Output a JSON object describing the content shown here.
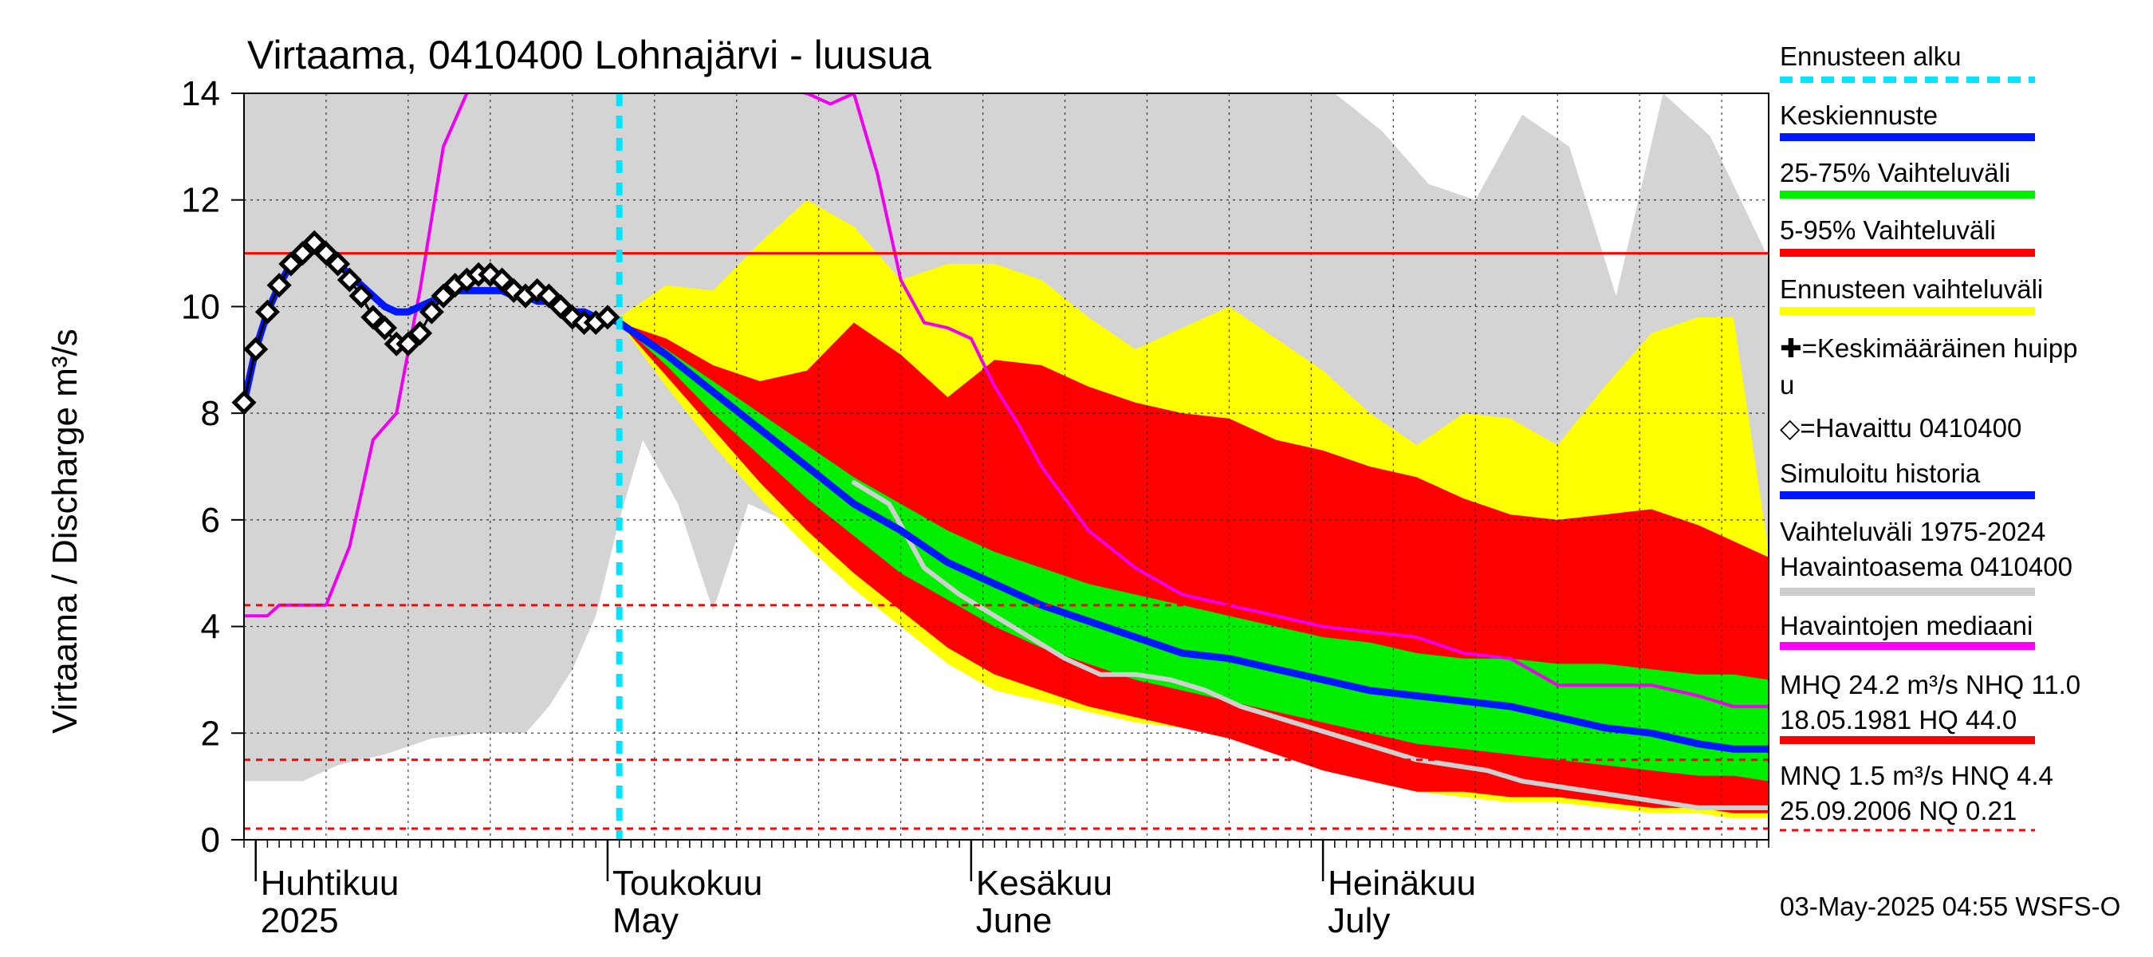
{
  "title": "Virtaama, 0410400 Lohnajärvi - luusua",
  "ylabel": "Virtaama / Discharge   m³/s",
  "footer": "03-May-2025 04:55 WSFS-O",
  "months": [
    {
      "fi": "Huhtikuu",
      "en": "2025",
      "date": "2025-04-01"
    },
    {
      "fi": "Toukokuu",
      "en": "May",
      "date": "2025-05-01"
    },
    {
      "fi": "Kesäkuu",
      "en": "June",
      "date": "2025-06-01"
    },
    {
      "fi": "Heinäkuu",
      "en": "July",
      "date": "2025-07-01"
    }
  ],
  "legend": [
    {
      "label": "Ennusteen alku",
      "color": "#00e5ff",
      "style": "dashed"
    },
    {
      "label": "Keskiennuste",
      "color": "#0018ff",
      "style": "line"
    },
    {
      "label": "25-75% Vaihteluväli",
      "color": "#00ee00",
      "style": "line"
    },
    {
      "label": "5-95% Vaihteluväli",
      "color": "#ff0000",
      "style": "line"
    },
    {
      "label": "Ennusteen vaihteluväli",
      "color": "#ffff00",
      "style": "line"
    },
    {
      "label": "✚=Keskimääräinen huipp",
      "label2": "u",
      "color": "#000000",
      "style": "none"
    },
    {
      "label": "◇=Havaittu 0410400",
      "color": "#000000",
      "style": "none"
    },
    {
      "label": "Simuloitu historia",
      "color": "#0018ff",
      "style": "line"
    },
    {
      "label": "Vaihteluväli 1975-2024",
      "label2": " Havaintoasema 0410400",
      "color": "#cccccc",
      "style": "line"
    },
    {
      "label": "Havaintojen mediaani",
      "color": "#ff00ff",
      "style": "line"
    },
    {
      "label": "MHQ 24.2 m³/s NHQ 11.0",
      "label2": "18.05.1981 HQ 44.0",
      "color": "#ff0000",
      "style": "line"
    },
    {
      "label": "MNQ  1.5 m³/s HNQ  4.4",
      "label2": "25.09.2006 NQ 0.21",
      "color": "#ff0000",
      "style": "dashed"
    }
  ],
  "chart_data": {
    "type": "line",
    "title": "Virtaama, 0410400 Lohnajärvi - luusua",
    "ylabel": "Virtaama / Discharge   m³/s",
    "xlim": [
      "2025-03-31",
      "2025-08-08"
    ],
    "ylim": [
      0,
      14
    ],
    "yticks": [
      0,
      2,
      4,
      6,
      8,
      10,
      12,
      14
    ],
    "grid": true,
    "forecast_start": "2025-05-02",
    "reference_lines": {
      "NHQ": 11.0,
      "HNQ": 4.4,
      "MNQ": 1.5,
      "NQ": 0.21
    },
    "history_range": {
      "name": "Vaihteluväli 1975-2024",
      "x": [
        "2025-03-31",
        "2025-04-03",
        "2025-04-05",
        "2025-04-08",
        "2025-04-12",
        "2025-04-16",
        "2025-04-20",
        "2025-04-24",
        "2025-04-26",
        "2025-04-28",
        "2025-04-30",
        "2025-05-02",
        "2025-05-04",
        "2025-05-07",
        "2025-05-10",
        "2025-05-13",
        "2025-05-16",
        "2025-05-20",
        "2025-05-24",
        "2025-05-28",
        "2025-06-01",
        "2025-06-05",
        "2025-06-08",
        "2025-06-12",
        "2025-06-16",
        "2025-06-20",
        "2025-06-24",
        "2025-06-28",
        "2025-07-02",
        "2025-07-06",
        "2025-07-10",
        "2025-07-14",
        "2025-07-18",
        "2025-07-22",
        "2025-07-26",
        "2025-07-30",
        "2025-08-03",
        "2025-08-08"
      ],
      "low": [
        1.1,
        1.1,
        1.1,
        1.4,
        1.6,
        1.9,
        2.0,
        2.0,
        2.5,
        3.2,
        4.2,
        6.0,
        7.5,
        6.3,
        4.3,
        6.3,
        6.0,
        6.3,
        6.8,
        6.5,
        5.5,
        4.9,
        4.6,
        4.2,
        3.8,
        3.4,
        3.0,
        2.7,
        2.4,
        2.0,
        1.7,
        1.5,
        1.3,
        1.2,
        1.1,
        1.0,
        0.9,
        0.8
      ],
      "high": [
        14,
        14,
        14,
        14,
        14,
        14,
        14,
        14,
        14,
        14,
        14,
        14,
        14,
        14,
        14,
        14,
        14,
        14,
        14,
        14,
        14,
        14,
        14,
        14,
        14,
        14,
        14,
        14,
        14,
        13.3,
        12.3,
        12.0,
        13.6,
        13.0,
        10.2,
        14.0,
        13.2,
        10.9
      ]
    },
    "bands": [
      {
        "name": "Ennusteen vaihteluväli",
        "x": [
          "2025-05-02",
          "2025-05-06",
          "2025-05-10",
          "2025-05-14",
          "2025-05-18",
          "2025-05-22",
          "2025-05-26",
          "2025-05-30",
          "2025-06-03",
          "2025-06-07",
          "2025-06-11",
          "2025-06-15",
          "2025-06-19",
          "2025-06-23",
          "2025-06-27",
          "2025-07-01",
          "2025-07-05",
          "2025-07-09",
          "2025-07-13",
          "2025-07-17",
          "2025-07-21",
          "2025-07-25",
          "2025-07-29",
          "2025-08-02",
          "2025-08-05",
          "2025-08-08"
        ],
        "low": [
          9.7,
          8.5,
          7.4,
          6.4,
          5.5,
          4.7,
          4.0,
          3.3,
          2.8,
          2.6,
          2.4,
          2.2,
          2.1,
          2.0,
          1.7,
          1.4,
          1.1,
          0.9,
          0.8,
          0.7,
          0.7,
          0.6,
          0.5,
          0.5,
          0.4,
          0.4
        ],
        "high": [
          9.8,
          10.4,
          10.3,
          11.2,
          12.0,
          11.5,
          10.5,
          10.8,
          10.8,
          10.5,
          9.8,
          9.2,
          9.6,
          10.0,
          9.4,
          8.8,
          8.0,
          7.4,
          8.0,
          7.9,
          7.4,
          8.5,
          9.5,
          9.8,
          9.8,
          5.4
        ]
      },
      {
        "name": "5-95% Vaihteluväli",
        "x": [
          "2025-05-02",
          "2025-05-06",
          "2025-05-10",
          "2025-05-14",
          "2025-05-18",
          "2025-05-22",
          "2025-05-26",
          "2025-05-30",
          "2025-06-03",
          "2025-06-07",
          "2025-06-11",
          "2025-06-15",
          "2025-06-19",
          "2025-06-23",
          "2025-06-27",
          "2025-07-01",
          "2025-07-05",
          "2025-07-09",
          "2025-07-13",
          "2025-07-17",
          "2025-07-21",
          "2025-07-25",
          "2025-07-29",
          "2025-08-02",
          "2025-08-05",
          "2025-08-08"
        ],
        "low": [
          9.7,
          8.7,
          7.7,
          6.7,
          5.8,
          5.0,
          4.3,
          3.6,
          3.1,
          2.8,
          2.5,
          2.3,
          2.1,
          1.9,
          1.6,
          1.3,
          1.1,
          0.9,
          0.9,
          0.8,
          0.8,
          0.7,
          0.6,
          0.6,
          0.5,
          0.5
        ],
        "high": [
          9.7,
          9.4,
          8.9,
          8.6,
          8.8,
          9.7,
          9.1,
          8.3,
          9.0,
          8.9,
          8.5,
          8.2,
          8.0,
          7.9,
          7.5,
          7.3,
          7.0,
          6.8,
          6.4,
          6.1,
          6.0,
          6.1,
          6.2,
          5.9,
          5.6,
          5.3
        ]
      },
      {
        "name": "25-75% Vaihteluväli",
        "x": [
          "2025-05-02",
          "2025-05-06",
          "2025-05-10",
          "2025-05-14",
          "2025-05-18",
          "2025-05-22",
          "2025-05-26",
          "2025-05-30",
          "2025-06-03",
          "2025-06-07",
          "2025-06-11",
          "2025-06-15",
          "2025-06-19",
          "2025-06-23",
          "2025-06-27",
          "2025-07-01",
          "2025-07-05",
          "2025-07-09",
          "2025-07-13",
          "2025-07-17",
          "2025-07-21",
          "2025-07-25",
          "2025-07-29",
          "2025-08-02",
          "2025-08-05",
          "2025-08-08"
        ],
        "low": [
          9.7,
          8.9,
          8.0,
          7.2,
          6.4,
          5.7,
          5.0,
          4.5,
          4.0,
          3.6,
          3.3,
          3.0,
          2.8,
          2.6,
          2.4,
          2.2,
          2.0,
          1.8,
          1.7,
          1.6,
          1.5,
          1.4,
          1.3,
          1.2,
          1.2,
          1.1
        ],
        "high": [
          9.7,
          9.2,
          8.6,
          8.0,
          7.4,
          6.8,
          6.3,
          5.8,
          5.4,
          5.1,
          4.8,
          4.6,
          4.4,
          4.2,
          4.0,
          3.8,
          3.7,
          3.5,
          3.4,
          3.4,
          3.3,
          3.3,
          3.2,
          3.1,
          3.1,
          3.0
        ]
      }
    ],
    "series": [
      {
        "name": "Keskiennuste",
        "color": "#0018ff",
        "x": [
          "2025-03-31",
          "2025-04-01",
          "2025-04-02",
          "2025-04-03",
          "2025-04-04",
          "2025-04-05",
          "2025-04-06",
          "2025-04-07",
          "2025-04-08",
          "2025-04-09",
          "2025-04-10",
          "2025-04-11",
          "2025-04-12",
          "2025-04-13",
          "2025-04-14",
          "2025-04-15",
          "2025-04-16",
          "2025-04-17",
          "2025-04-18",
          "2025-04-19",
          "2025-04-20",
          "2025-04-21",
          "2025-04-22",
          "2025-04-23",
          "2025-04-24",
          "2025-04-25",
          "2025-04-26",
          "2025-04-27",
          "2025-04-28",
          "2025-04-29",
          "2025-04-30",
          "2025-05-01",
          "2025-05-02",
          "2025-05-06",
          "2025-05-10",
          "2025-05-14",
          "2025-05-18",
          "2025-05-22",
          "2025-05-26",
          "2025-05-30",
          "2025-06-03",
          "2025-06-07",
          "2025-06-11",
          "2025-06-15",
          "2025-06-19",
          "2025-06-23",
          "2025-06-27",
          "2025-07-01",
          "2025-07-05",
          "2025-07-09",
          "2025-07-13",
          "2025-07-17",
          "2025-07-21",
          "2025-07-25",
          "2025-07-29",
          "2025-08-02",
          "2025-08-05",
          "2025-08-08"
        ],
        "values": [
          8.2,
          9.2,
          9.9,
          10.4,
          10.8,
          11.0,
          11.1,
          11.0,
          10.8,
          10.6,
          10.4,
          10.2,
          10.0,
          9.9,
          9.9,
          10.0,
          10.1,
          10.2,
          10.3,
          10.3,
          10.3,
          10.3,
          10.3,
          10.2,
          10.2,
          10.1,
          10.1,
          10.0,
          9.9,
          9.9,
          9.8,
          9.8,
          9.7,
          9.1,
          8.4,
          7.7,
          7.0,
          6.3,
          5.8,
          5.2,
          4.8,
          4.4,
          4.1,
          3.8,
          3.5,
          3.4,
          3.2,
          3.0,
          2.8,
          2.7,
          2.6,
          2.5,
          2.3,
          2.1,
          2.0,
          1.8,
          1.7,
          1.7
        ]
      },
      {
        "name": "Havaittu 0410400",
        "color": "#000000",
        "markers": true,
        "x": [
          "2025-03-31",
          "2025-04-01",
          "2025-04-02",
          "2025-04-03",
          "2025-04-04",
          "2025-04-05",
          "2025-04-06",
          "2025-04-07",
          "2025-04-08",
          "2025-04-09",
          "2025-04-10",
          "2025-04-11",
          "2025-04-12",
          "2025-04-13",
          "2025-04-14",
          "2025-04-15",
          "2025-04-16",
          "2025-04-17",
          "2025-04-18",
          "2025-04-19",
          "2025-04-20",
          "2025-04-21",
          "2025-04-22",
          "2025-04-23",
          "2025-04-24",
          "2025-04-25",
          "2025-04-26",
          "2025-04-27",
          "2025-04-28",
          "2025-04-29",
          "2025-04-30",
          "2025-05-01"
        ],
        "values": [
          8.2,
          9.2,
          9.9,
          10.4,
          10.8,
          11.0,
          11.2,
          11.0,
          10.8,
          10.5,
          10.2,
          9.8,
          9.6,
          9.3,
          9.3,
          9.5,
          9.9,
          10.2,
          10.4,
          10.5,
          10.6,
          10.6,
          10.5,
          10.3,
          10.2,
          10.3,
          10.2,
          10.0,
          9.8,
          9.7,
          9.7,
          9.8
        ]
      },
      {
        "name": "Havaintojen mediaani",
        "color": "#ee00ee",
        "x": [
          "2025-03-31",
          "2025-04-02",
          "2025-04-03",
          "2025-04-07",
          "2025-04-09",
          "2025-04-11",
          "2025-04-13",
          "2025-04-15",
          "2025-04-17",
          "2025-04-19",
          "2025-04-21",
          "2025-04-23",
          "2025-05-18",
          "2025-05-20",
          "2025-05-22",
          "2025-05-24",
          "2025-05-26",
          "2025-05-28",
          "2025-05-30",
          "2025-06-01",
          "2025-06-03",
          "2025-06-05",
          "2025-06-07",
          "2025-06-11",
          "2025-06-15",
          "2025-06-19",
          "2025-06-23",
          "2025-06-27",
          "2025-07-01",
          "2025-07-05",
          "2025-07-09",
          "2025-07-13",
          "2025-07-17",
          "2025-07-21",
          "2025-07-25",
          "2025-07-29",
          "2025-08-02",
          "2025-08-05",
          "2025-08-08"
        ],
        "values": [
          4.2,
          4.2,
          4.4,
          4.4,
          5.5,
          7.5,
          8.0,
          10.3,
          13.0,
          14.0,
          14.5,
          15.0,
          14.0,
          13.8,
          14.0,
          12.5,
          10.5,
          9.7,
          9.6,
          9.4,
          8.5,
          7.8,
          7.0,
          5.8,
          5.1,
          4.6,
          4.4,
          4.2,
          4.0,
          3.9,
          3.8,
          3.5,
          3.4,
          2.9,
          2.9,
          2.9,
          2.7,
          2.5,
          2.5
        ]
      },
      {
        "name": "Simuloitu historia low",
        "color": "#d0d0d0",
        "x": [
          "2025-05-22",
          "2025-05-25",
          "2025-05-28",
          "2025-05-31",
          "2025-06-03",
          "2025-06-06",
          "2025-06-09",
          "2025-06-12",
          "2025-06-15",
          "2025-06-18",
          "2025-06-21",
          "2025-06-24",
          "2025-06-27",
          "2025-06-30",
          "2025-07-03",
          "2025-07-06",
          "2025-07-09",
          "2025-07-12",
          "2025-07-15",
          "2025-07-18",
          "2025-07-21",
          "2025-07-24",
          "2025-07-27",
          "2025-07-30",
          "2025-08-02",
          "2025-08-05",
          "2025-08-08"
        ],
        "values": [
          6.7,
          6.3,
          5.1,
          4.6,
          4.2,
          3.8,
          3.4,
          3.1,
          3.1,
          3.0,
          2.8,
          2.5,
          2.3,
          2.1,
          1.9,
          1.7,
          1.5,
          1.4,
          1.3,
          1.1,
          1.0,
          0.9,
          0.8,
          0.7,
          0.6,
          0.6,
          0.6
        ]
      }
    ]
  }
}
